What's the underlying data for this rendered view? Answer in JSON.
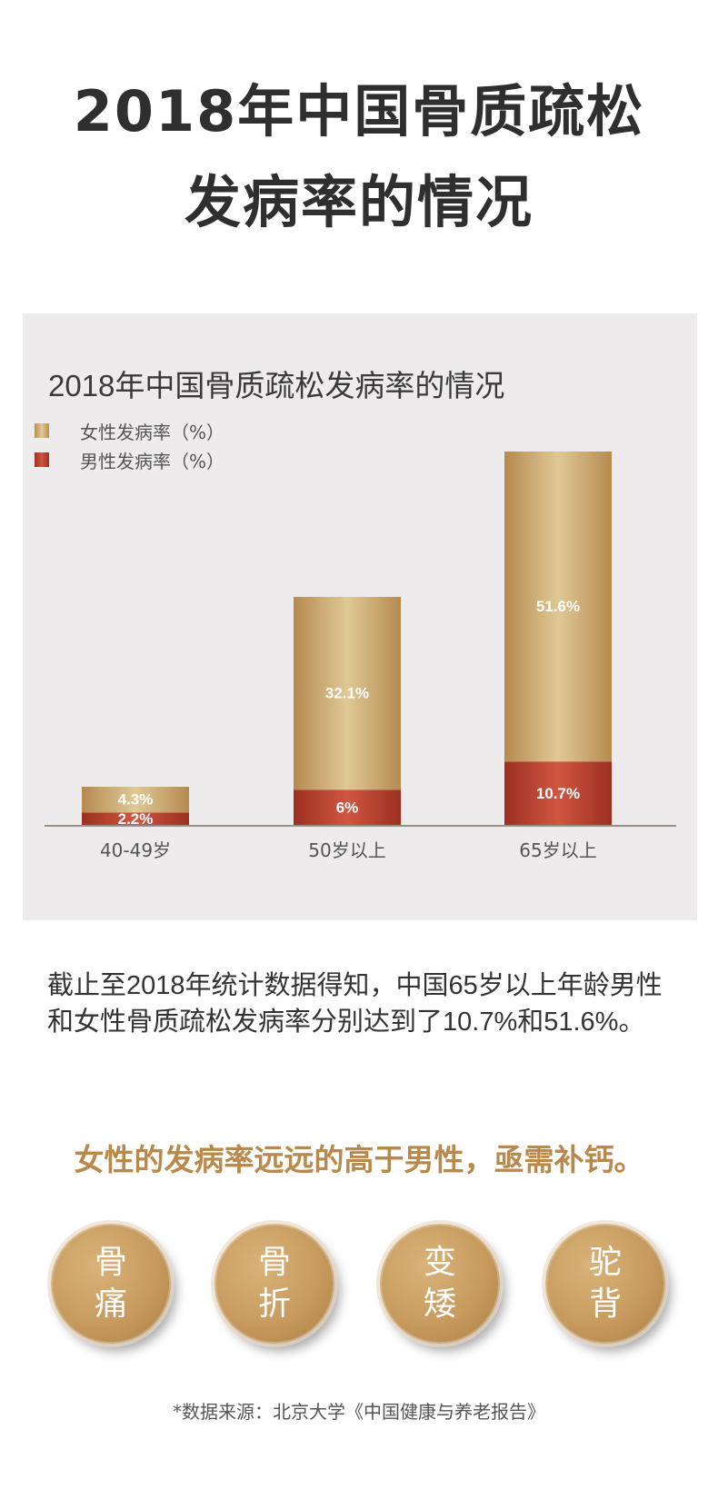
{
  "header": {
    "title_line1": "2018年中国骨质疏松",
    "title_line2": "发病率的情况"
  },
  "chart_data": {
    "type": "bar",
    "stacked": true,
    "title": "2018年中国骨质疏松发病率的情况",
    "categories": [
      "40-49岁",
      "50岁以上",
      "65岁以上"
    ],
    "series": [
      {
        "name": "男性发病率（%）",
        "values": [
          2.2,
          6,
          10.7
        ],
        "labels": [
          "2.2%",
          "6%",
          "10.7%"
        ],
        "color": "#b5402f"
      },
      {
        "name": "女性发病率（%）",
        "values": [
          4.3,
          32.1,
          51.6
        ],
        "labels": [
          "4.3%",
          "32.1%",
          "51.6%"
        ],
        "color": "#c9a66f"
      }
    ],
    "legend_order": [
      "女性发病率（%）",
      "男性发病率（%）"
    ],
    "legend_position": "top-left",
    "grid": false,
    "ylim": [
      0,
      62.3
    ]
  },
  "description": "截止至2018年统计数据得知，中国65岁以上年龄男性和女性骨质疏松发病率分别达到了10.7%和51.6%。",
  "highlight": "女性的发病率远远的高于男性，亟需补钙。",
  "symptoms": [
    {
      "line1": "骨",
      "line2": "痛"
    },
    {
      "line1": "骨",
      "line2": "折"
    },
    {
      "line1": "变",
      "line2": "矮"
    },
    {
      "line1": "驼",
      "line2": "背"
    }
  ],
  "source": "*数据来源：北京大学《中国健康与养老报告》",
  "colors": {
    "accent_gold": "#b8894a",
    "bar_female": "#c9a66f",
    "bar_male": "#b5402f",
    "panel_bg": "#edebeb"
  }
}
